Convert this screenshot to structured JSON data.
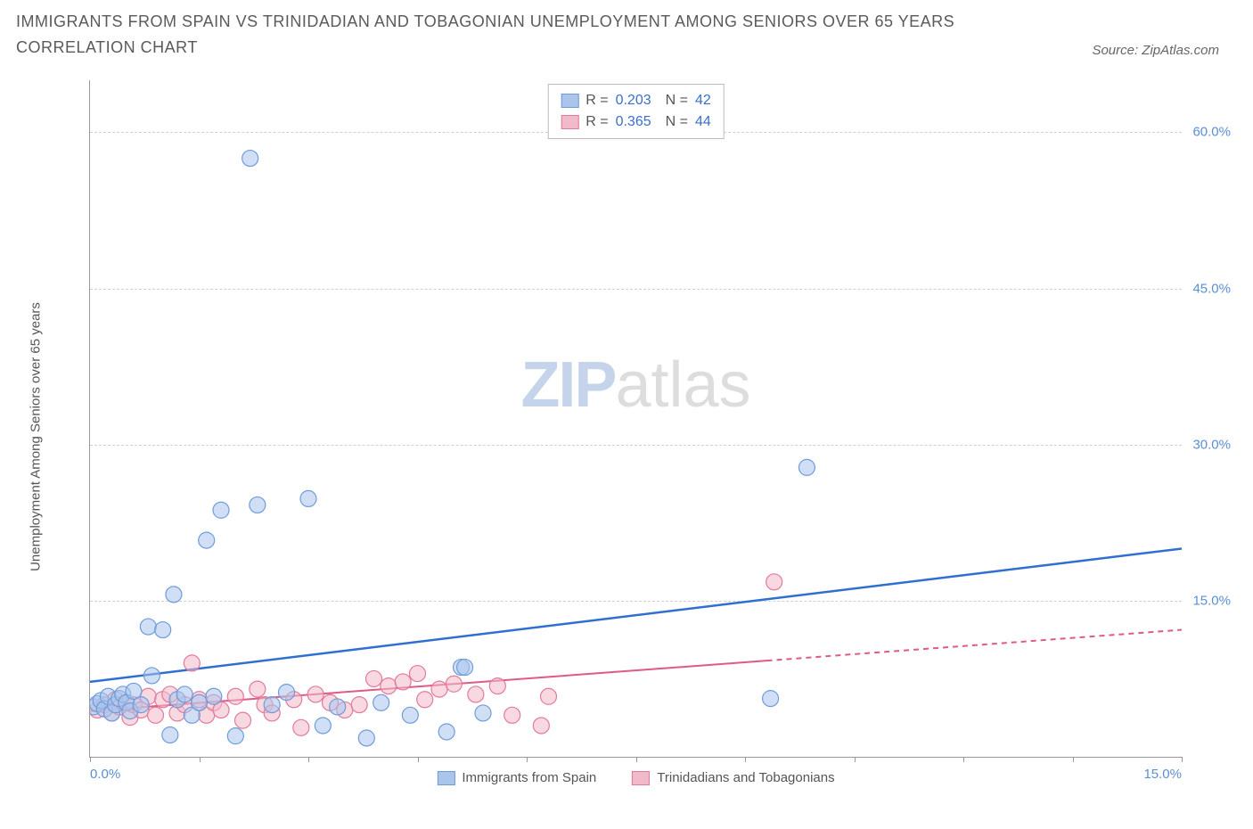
{
  "title": "IMMIGRANTS FROM SPAIN VS TRINIDADIAN AND TOBAGONIAN UNEMPLOYMENT AMONG SENIORS OVER 65 YEARS CORRELATION CHART",
  "source": "Source: ZipAtlas.com",
  "y_axis_label": "Unemployment Among Seniors over 65 years",
  "watermark_a": "ZIP",
  "watermark_b": "atlas",
  "chart": {
    "type": "scatter",
    "xlim": [
      0,
      15
    ],
    "ylim": [
      0,
      65
    ],
    "y_ticks": [
      15,
      30,
      45,
      60
    ],
    "y_tick_labels": [
      "15.0%",
      "30.0%",
      "45.0%",
      "60.0%"
    ],
    "x_tick_positions": [
      0,
      1.5,
      3.0,
      4.5,
      6.0,
      7.5,
      9.0,
      10.5,
      12.0,
      13.5,
      15.0
    ],
    "x_start_label": "0.0%",
    "x_end_label": "15.0%",
    "background_color": "#ffffff",
    "grid_color": "#d0d0d0",
    "series": [
      {
        "name": "Immigrants from Spain",
        "color_fill": "#a9c5ec",
        "color_stroke": "#6f9cd8",
        "fill_opacity": 0.55,
        "marker_radius": 9,
        "R": "0.203",
        "N": "42",
        "trend": {
          "color": "#2f6fd0",
          "width": 2.5,
          "y_at_x0": 7.2,
          "y_at_xmax": 20.0,
          "dash_from_x": null
        },
        "points": [
          [
            0.05,
            4.8
          ],
          [
            0.1,
            5.1
          ],
          [
            0.15,
            5.4
          ],
          [
            0.2,
            4.6
          ],
          [
            0.25,
            5.8
          ],
          [
            0.3,
            4.2
          ],
          [
            0.35,
            5.0
          ],
          [
            0.4,
            5.6
          ],
          [
            0.45,
            6.0
          ],
          [
            0.5,
            5.2
          ],
          [
            0.55,
            4.4
          ],
          [
            0.6,
            6.3
          ],
          [
            0.7,
            5.0
          ],
          [
            0.8,
            12.5
          ],
          [
            0.85,
            7.8
          ],
          [
            1.0,
            12.2
          ],
          [
            1.1,
            2.1
          ],
          [
            1.15,
            15.6
          ],
          [
            1.2,
            5.5
          ],
          [
            1.3,
            6.0
          ],
          [
            1.4,
            4.0
          ],
          [
            1.5,
            5.2
          ],
          [
            1.6,
            20.8
          ],
          [
            1.7,
            5.8
          ],
          [
            1.8,
            23.7
          ],
          [
            2.0,
            2.0
          ],
          [
            2.2,
            57.5
          ],
          [
            2.3,
            24.2
          ],
          [
            2.5,
            5.0
          ],
          [
            2.7,
            6.2
          ],
          [
            3.0,
            24.8
          ],
          [
            3.2,
            3.0
          ],
          [
            3.4,
            4.8
          ],
          [
            3.8,
            1.8
          ],
          [
            4.0,
            5.2
          ],
          [
            4.4,
            4.0
          ],
          [
            4.9,
            2.4
          ],
          [
            5.1,
            8.6
          ],
          [
            5.15,
            8.6
          ],
          [
            5.4,
            4.2
          ],
          [
            9.35,
            5.6
          ],
          [
            9.85,
            27.8
          ]
        ]
      },
      {
        "name": "Trinidadians and Tobagonians",
        "color_fill": "#f2b9ca",
        "color_stroke": "#e27a9a",
        "fill_opacity": 0.55,
        "marker_radius": 9,
        "R": "0.365",
        "N": "44",
        "trend": {
          "color": "#e05a85",
          "width": 2,
          "y_at_x0": 4.4,
          "y_at_xmax": 12.2,
          "dash_from_x": 9.3
        },
        "points": [
          [
            0.1,
            4.5
          ],
          [
            0.2,
            5.0
          ],
          [
            0.3,
            4.2
          ],
          [
            0.35,
            5.5
          ],
          [
            0.4,
            4.8
          ],
          [
            0.5,
            5.2
          ],
          [
            0.55,
            3.8
          ],
          [
            0.6,
            5.0
          ],
          [
            0.7,
            4.5
          ],
          [
            0.8,
            5.8
          ],
          [
            0.9,
            4.0
          ],
          [
            1.0,
            5.5
          ],
          [
            1.1,
            6.0
          ],
          [
            1.2,
            4.2
          ],
          [
            1.3,
            5.0
          ],
          [
            1.4,
            9.0
          ],
          [
            1.5,
            5.5
          ],
          [
            1.6,
            4.0
          ],
          [
            1.7,
            5.2
          ],
          [
            1.8,
            4.5
          ],
          [
            2.0,
            5.8
          ],
          [
            2.1,
            3.5
          ],
          [
            2.3,
            6.5
          ],
          [
            2.4,
            5.0
          ],
          [
            2.5,
            4.2
          ],
          [
            2.8,
            5.5
          ],
          [
            2.9,
            2.8
          ],
          [
            3.1,
            6.0
          ],
          [
            3.3,
            5.2
          ],
          [
            3.5,
            4.5
          ],
          [
            3.7,
            5.0
          ],
          [
            3.9,
            7.5
          ],
          [
            4.1,
            6.8
          ],
          [
            4.3,
            7.2
          ],
          [
            4.5,
            8.0
          ],
          [
            4.6,
            5.5
          ],
          [
            4.8,
            6.5
          ],
          [
            5.0,
            7.0
          ],
          [
            5.3,
            6.0
          ],
          [
            5.6,
            6.8
          ],
          [
            5.8,
            4.0
          ],
          [
            6.2,
            3.0
          ],
          [
            6.3,
            5.8
          ],
          [
            9.4,
            16.8
          ]
        ]
      }
    ],
    "legend_bottom": [
      {
        "label": "Immigrants from Spain",
        "fill": "#a9c5ec",
        "stroke": "#6f9cd8"
      },
      {
        "label": "Trinidadians and Tobagonians",
        "fill": "#f2b9ca",
        "stroke": "#e27a9a"
      }
    ]
  }
}
